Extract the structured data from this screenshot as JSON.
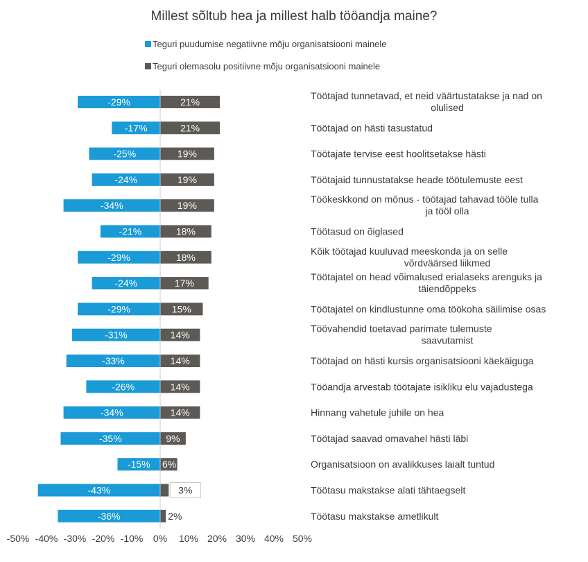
{
  "chart_data": {
    "type": "bar",
    "title": "Millest sõltub hea ja millest halb tööandja maine?",
    "series": [
      {
        "name": "Teguri puudumise negatiivne mõju organisatsiooni mainele",
        "color": "#1a9ad6",
        "values": [
          -29,
          -17,
          -25,
          -24,
          -34,
          -21,
          -29,
          -24,
          -29,
          -31,
          -33,
          -26,
          -34,
          -35,
          -15,
          -43,
          -36
        ]
      },
      {
        "name": "Teguri olemasolu positiivne mõju organisatsiooni mainele",
        "color": "#5d5955",
        "values": [
          21,
          21,
          19,
          19,
          19,
          18,
          18,
          17,
          15,
          14,
          14,
          14,
          14,
          9,
          6,
          3,
          2
        ]
      }
    ],
    "categories": [
      "Töötajad tunnetavad, et neid väärtustatakse ja nad on olulised",
      "Töötajad on hästi tasustatud",
      "Töötajate tervise eest hoolitsetakse hästi",
      "Töötajaid tunnustatakse heade töötulemuste eest",
      "Töökeskkond on mõnus - töötajad tahavad tööle tulla ja tööl olla",
      "Töötasud on õiglased",
      "Kõik töötajad kuuluvad meeskonda ja on selle võrdväärsed liikmed",
      "Töötajatel on head võimalused erialaseks arenguks ja täiendõppeks",
      "Töötajatel on kindlustunne oma töökoha säilimise osas",
      "Töövahendid toetavad parimate tulemuste saavutamist",
      "Töötajad on hästi kursis organisatsiooni käekäiguga",
      "Tööandja arvestab töötajate isikliku elu vajadustega",
      "Hinnang vahetule juhile on hea",
      "Töötajad saavad omavahel hästi läbi",
      "Organisatsioon on avalikkuses laialt tuntud",
      "Töötasu makstakse alati tähtaegselt",
      "Töötasu makstakse ametlikult"
    ],
    "category_lines": [
      [
        "Töötajad tunnetavad, et neid väärtustatakse ja nad on",
        "olulised"
      ],
      [
        "Töötajad on hästi tasustatud"
      ],
      [
        "Töötajate tervise eest hoolitsetakse hästi"
      ],
      [
        "Töötajaid tunnustatakse heade töötulemuste eest"
      ],
      [
        "Töökeskkond on mõnus - töötajad tahavad tööle tulla",
        "ja tööl olla"
      ],
      [
        "Töötasud on õiglased"
      ],
      [
        "Kõik töötajad kuuluvad meeskonda ja on selle",
        "võrdväärsed liikmed"
      ],
      [
        "Töötajatel on head võimalused erialaseks arenguks ja",
        "täiendõppeks"
      ],
      [
        "Töötajatel on kindlustunne oma töökoha säilimise osas"
      ],
      [
        "Töövahendid toetavad parimate tulemuste",
        "saavutamist"
      ],
      [
        "Töötajad on hästi kursis organisatsiooni käekäiguga"
      ],
      [
        "Tööandja arvestab töötajate isikliku elu vajadustega"
      ],
      [
        "Hinnang vahetule juhile on hea"
      ],
      [
        "Töötajad saavad omavahel hästi läbi"
      ],
      [
        "Organisatsioon on avalikkuses laialt tuntud"
      ],
      [
        "Töötasu makstakse alati tähtaegselt"
      ],
      [
        "Töötasu makstakse ametlikult"
      ]
    ],
    "xlim": [
      -50,
      50
    ],
    "x_ticks": [
      -50,
      -40,
      -30,
      -20,
      -10,
      0,
      10,
      20,
      30,
      40,
      50
    ],
    "x_tick_labels": [
      "-50%",
      "-40%",
      "-30%",
      "-20%",
      "-10%",
      "0%",
      "10%",
      "20%",
      "30%",
      "40%",
      "50%"
    ],
    "data_label_format": "percent",
    "legend_position": "top",
    "grid": false,
    "colors": {
      "negative": "#1a9ad6",
      "positive": "#5d5955",
      "text": "#3a3a3a",
      "axis": "#c8c8c8",
      "bar_label": "#ffffff"
    }
  }
}
